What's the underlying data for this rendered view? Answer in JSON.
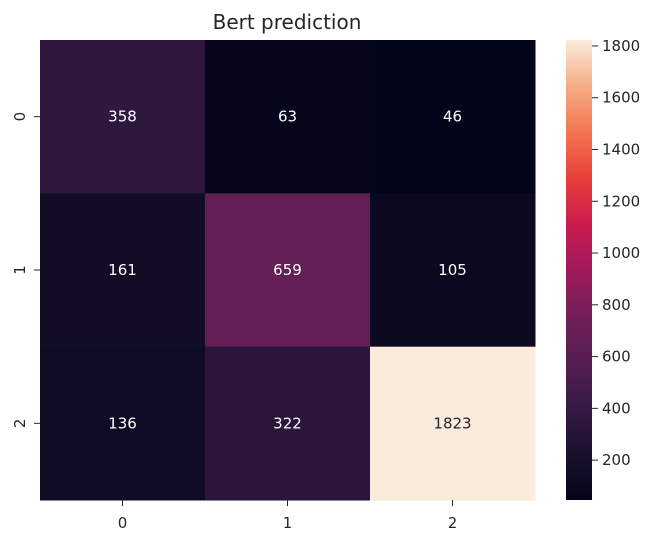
{
  "chart_data": {
    "type": "heatmap",
    "title": "Bert prediction",
    "xlabel": "",
    "ylabel": "",
    "x_categories": [
      "0",
      "1",
      "2"
    ],
    "y_categories": [
      "0",
      "1",
      "2"
    ],
    "values": [
      [
        358,
        63,
        46
      ],
      [
        161,
        659,
        105
      ],
      [
        136,
        322,
        1823
      ]
    ],
    "colormap": "rocket",
    "colorbar": {
      "range": [
        46,
        1823
      ],
      "ticks": [
        200,
        400,
        600,
        800,
        1000,
        1200,
        1400,
        1600,
        1800
      ],
      "tick_labels": [
        "200",
        "400",
        "600",
        "800",
        "1000",
        "1200",
        "1400",
        "1600",
        "1800"
      ]
    },
    "grid": false
  }
}
